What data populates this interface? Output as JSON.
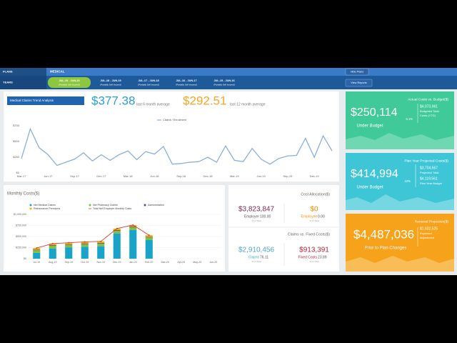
{
  "nav": {
    "plans_label": "PLANS",
    "plan_tab": "MEDICAL",
    "hide_plans": "Hide Plans",
    "years_label": "YEARS",
    "years": [
      {
        "range": "JUL-19 - JUN-20",
        "note": "(Partially Self Insured)"
      },
      {
        "range": "JUL-18 - JUN-19",
        "note": "(Partially Self Insured)"
      },
      {
        "range": "JUL-17 - JUN-18",
        "note": "(Partially Self Insured)"
      },
      {
        "range": "JUL-16 - JUN-17",
        "note": "(Partially Self Insured)"
      },
      {
        "range": "JUL-15 - JUN-16",
        "note": "(Partially Self Insured)"
      }
    ],
    "view_reports": "View Reports"
  },
  "trend": {
    "avg6": "$377.38",
    "avg6_label": "last 6 month average",
    "avg12": "$292.51",
    "avg12_label": "last 12 month average"
  },
  "cost_allocation": {
    "title": "Cost Allocation($)",
    "items": [
      {
        "amount": "$3,823,847",
        "label": "Employer",
        "pct": "100.00",
        "pct_label": "% of Total"
      },
      {
        "amount": "$0",
        "label": "Employee",
        "pct": "0.00",
        "pct_label": "% of Total"
      }
    ]
  },
  "claims_vs_fixed": {
    "title": "Claims vs. Fixed Costs($)",
    "items": [
      {
        "amount": "$2,910,456",
        "label": "Claims",
        "pct": "76.11",
        "pct_label": "% of Total"
      },
      {
        "amount": "$913,391",
        "label": "Fixed Costs",
        "pct": "23.89",
        "pct_label": "% of Total"
      }
    ]
  },
  "cards": [
    {
      "title": "Actual Costs vs. Budget($)",
      "amount": "$250,114",
      "status": "Under Budget",
      "pct": "6.1%",
      "details": [
        {
          "amount": "$4,073,961",
          "lines": [
            "Budgeted Total",
            "Costs (YTD)"
          ]
        }
      ]
    },
    {
      "title": "Plan Year Projected Costs($)",
      "amount": "$414,994",
      "status": "Under Budget",
      "pct": "10%",
      "details": [
        {
          "amount": "$3,704,567",
          "lines": [
            "Projected Total"
          ]
        },
        {
          "amount": "$4,119,561",
          "lines": [
            "Plan Year Budget"
          ]
        }
      ]
    },
    {
      "title": "Renewal Projection($)",
      "amount": "$4,487,036",
      "status": "Prior to Plan Changes",
      "details": [
        {
          "amount": "$1,632,525",
          "lines": [
            "Expected",
            "Adjustment"
          ]
        }
      ]
    }
  ],
  "chart_data": [
    {
      "type": "line",
      "title": "Medical Claims Trend Analysis",
      "categories": [
        "Mar-17",
        null,
        null,
        "Jun-17",
        null,
        null,
        "Sep-17",
        null,
        null,
        "Dec-17",
        null,
        null,
        "Mar-18",
        null,
        null,
        "Jun-18",
        null,
        null,
        "Sep-18",
        null,
        null,
        "Dec-18",
        null,
        null,
        "Mar-19",
        null,
        null,
        "Jun-19",
        null,
        null,
        "Sep-19",
        null,
        null,
        "Dec-19",
        null,
        null
      ],
      "series": [
        {
          "name": "Claims / Enrollment",
          "color": "#8aafd6",
          "values": [
            230,
            700,
            400,
            290,
            120,
            170,
            220,
            320,
            190,
            290,
            200,
            290,
            350,
            210,
            340,
            300,
            420,
            140,
            150,
            170,
            180,
            250,
            170,
            430,
            200,
            180,
            390,
            220,
            140,
            230,
            270,
            280,
            550,
            250,
            590,
            350
          ]
        }
      ],
      "ylim": [
        0,
        750
      ],
      "yticks": [
        {
          "value": 0,
          "label": "$0"
        },
        {
          "value": 250,
          "label": "$250"
        },
        {
          "value": 500,
          "label": "$500"
        },
        {
          "value": 750,
          "label": "$750"
        }
      ],
      "grid": false
    },
    {
      "type": "bar",
      "title": "Monthly Costs($)",
      "stacked": true,
      "categories": [
        "Jul-19",
        "Aug-19",
        "Sep-19",
        "Oct-19",
        "Nov-19",
        "Dec-19",
        "Jan-20",
        "Feb-20",
        "Mar-20",
        "Apr-20",
        "May-20",
        "Jun-20"
      ],
      "series": [
        {
          "name": "Net Medical Claims",
          "color": "#1aa3c8",
          "type": "bar",
          "values": [
            130000,
            230000,
            250000,
            270000,
            280000,
            570000,
            650000,
            420000,
            null,
            null,
            null,
            null
          ]
        },
        {
          "name": "Net Pharmacy Claims",
          "color": "#7cc242",
          "type": "bar",
          "values": [
            60000,
            60000,
            60000,
            60000,
            60000,
            60000,
            60000,
            60000,
            null,
            null,
            null,
            null
          ]
        },
        {
          "name": "Administration",
          "color": "#6b3fa0",
          "type": "bar",
          "values": [
            15000,
            15000,
            15000,
            15000,
            15000,
            15000,
            15000,
            15000,
            null,
            null,
            null,
            null
          ]
        },
        {
          "name": "Reinsurance Premiums",
          "color": "#f4b400",
          "type": "bar",
          "values": [
            35000,
            35000,
            35000,
            35000,
            35000,
            35000,
            35000,
            35000,
            null,
            null,
            null,
            null
          ]
        },
        {
          "name": "Total Net Employer Monthly Costs",
          "color": "#d9402b",
          "type": "line",
          "values": [
            240000,
            340000,
            360000,
            380000,
            390000,
            680000,
            760000,
            530000,
            null,
            null,
            null,
            null
          ]
        }
      ],
      "ylim": [
        0,
        1000000
      ],
      "yticks": [
        {
          "value": 0,
          "label": "$0"
        },
        {
          "value": 250000,
          "label": "$250,000"
        },
        {
          "value": 500000,
          "label": "$500,000"
        },
        {
          "value": 750000,
          "label": "$750,000"
        },
        {
          "value": 1000000,
          "label": "$1,000,000"
        }
      ],
      "grid": true
    }
  ]
}
